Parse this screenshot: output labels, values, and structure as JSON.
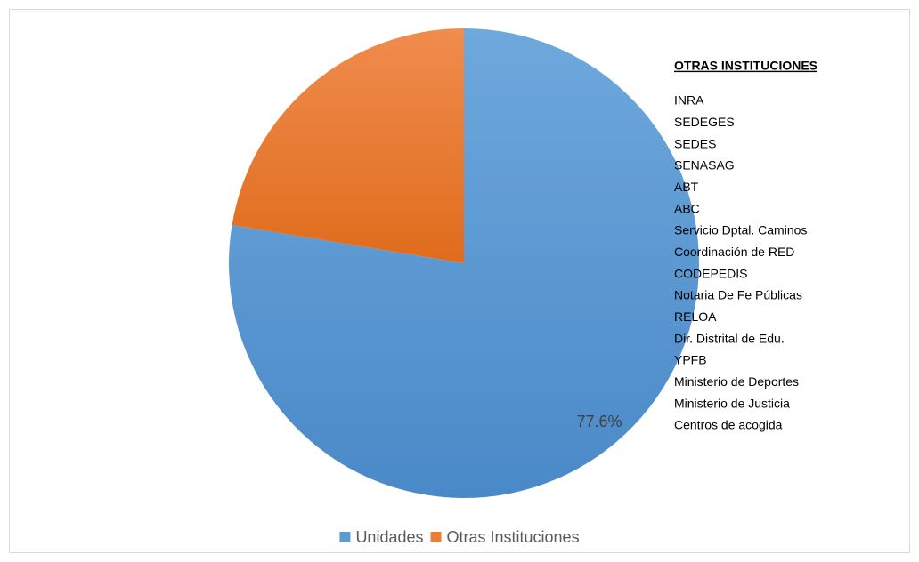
{
  "chart_data": {
    "type": "pie",
    "categories": [
      "Unidades",
      "Otras Instituciones"
    ],
    "values": [
      77.6,
      22.4
    ],
    "value_labels": [
      "77.6%",
      null
    ],
    "colors": [
      "#5b9bd5",
      "#ed7d31"
    ],
    "legend": "bottom",
    "annotation": {
      "title": "OTRAS INSTITUCIONES",
      "items": [
        "INRA",
        "SEDEGES",
        "SEDES",
        "SENASAG",
        "ABT",
        "ABC",
        "Servicio Dptal. Caminos",
        "Coordinación de RED",
        "CODEPEDIS",
        "Notaria De Fe Públicas",
        "RELOA",
        "Dir. Distrital de Edu.",
        "YPFB",
        "Ministerio de Deportes",
        "Ministerio de Justicia",
        "Centros de acogida"
      ]
    }
  }
}
